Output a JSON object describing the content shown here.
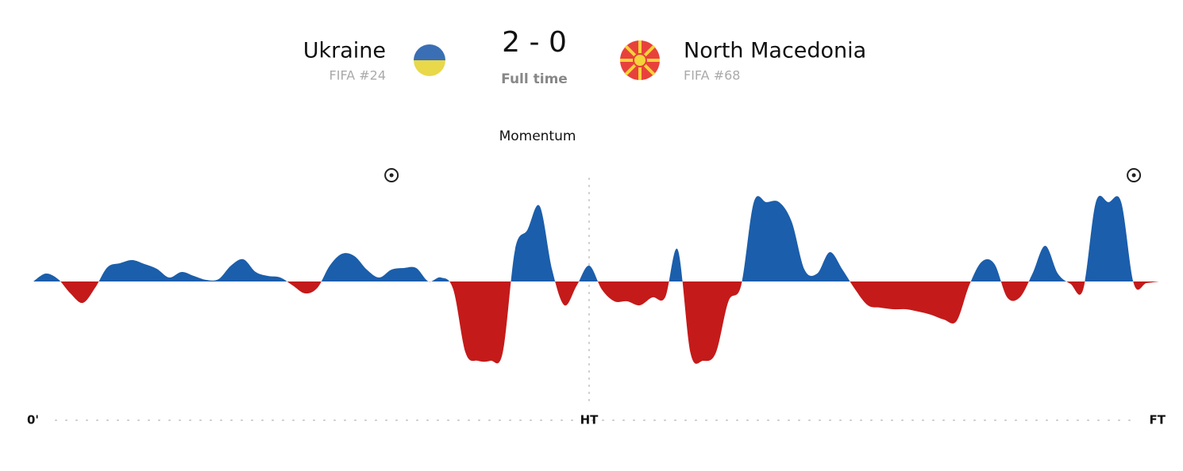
{
  "match": {
    "home": {
      "name": "Ukraine",
      "rank": "FIFA #24"
    },
    "away": {
      "name": "North Macedonia",
      "rank": "FIFA #68"
    },
    "score": "2 - 0",
    "status": "Full time"
  },
  "chart_data": {
    "type": "area",
    "title": "Momentum",
    "x": [
      0,
      1,
      2,
      3,
      4,
      5,
      6,
      7,
      8,
      9,
      10,
      11,
      12,
      13,
      14,
      15,
      16,
      17,
      18,
      19,
      20,
      21,
      22,
      23,
      24,
      25,
      26,
      27,
      28,
      29,
      30,
      31,
      32,
      33,
      34,
      35,
      36,
      37,
      38,
      39,
      40,
      41,
      42,
      43,
      44,
      45,
      46,
      47,
      48,
      49,
      50,
      51,
      52,
      53,
      54,
      55,
      56,
      57,
      58,
      59,
      60,
      61,
      62,
      63,
      64,
      65,
      66,
      67,
      68,
      69,
      70,
      71,
      72,
      73,
      74,
      75,
      76,
      77,
      78,
      79,
      80,
      81,
      82,
      83,
      84,
      85,
      86,
      87,
      88,
      89,
      90
    ],
    "values": [
      0,
      10,
      3,
      -15,
      -27,
      -8,
      18,
      23,
      27,
      22,
      16,
      5,
      12,
      7,
      2,
      3,
      20,
      28,
      12,
      7,
      5,
      -5,
      -15,
      -8,
      20,
      35,
      32,
      15,
      5,
      15,
      17,
      17,
      0,
      5,
      -10,
      -90,
      -100,
      -100,
      -90,
      40,
      65,
      95,
      15,
      -30,
      -5,
      20,
      -10,
      -25,
      -25,
      -30,
      -20,
      -20,
      40,
      -90,
      -100,
      -90,
      -25,
      -5,
      100,
      100,
      100,
      75,
      15,
      10,
      37,
      15,
      -10,
      -30,
      -33,
      -35,
      -35,
      -38,
      -42,
      -48,
      -50,
      -5,
      25,
      22,
      -20,
      -20,
      10,
      45,
      10,
      -3,
      -10,
      100,
      100,
      100,
      -3,
      -2,
      0
    ],
    "colors": [
      "#1b5eab",
      "#c41a1a"
    ],
    "xlim": [
      0,
      90
    ],
    "ylim": [
      -100,
      100
    ],
    "xticks": [
      {
        "value": 0,
        "label": "0'"
      },
      {
        "value": 45,
        "label": "HT"
      },
      {
        "value": 90,
        "label": "FT"
      }
    ],
    "goals": [
      29,
      88
    ]
  }
}
